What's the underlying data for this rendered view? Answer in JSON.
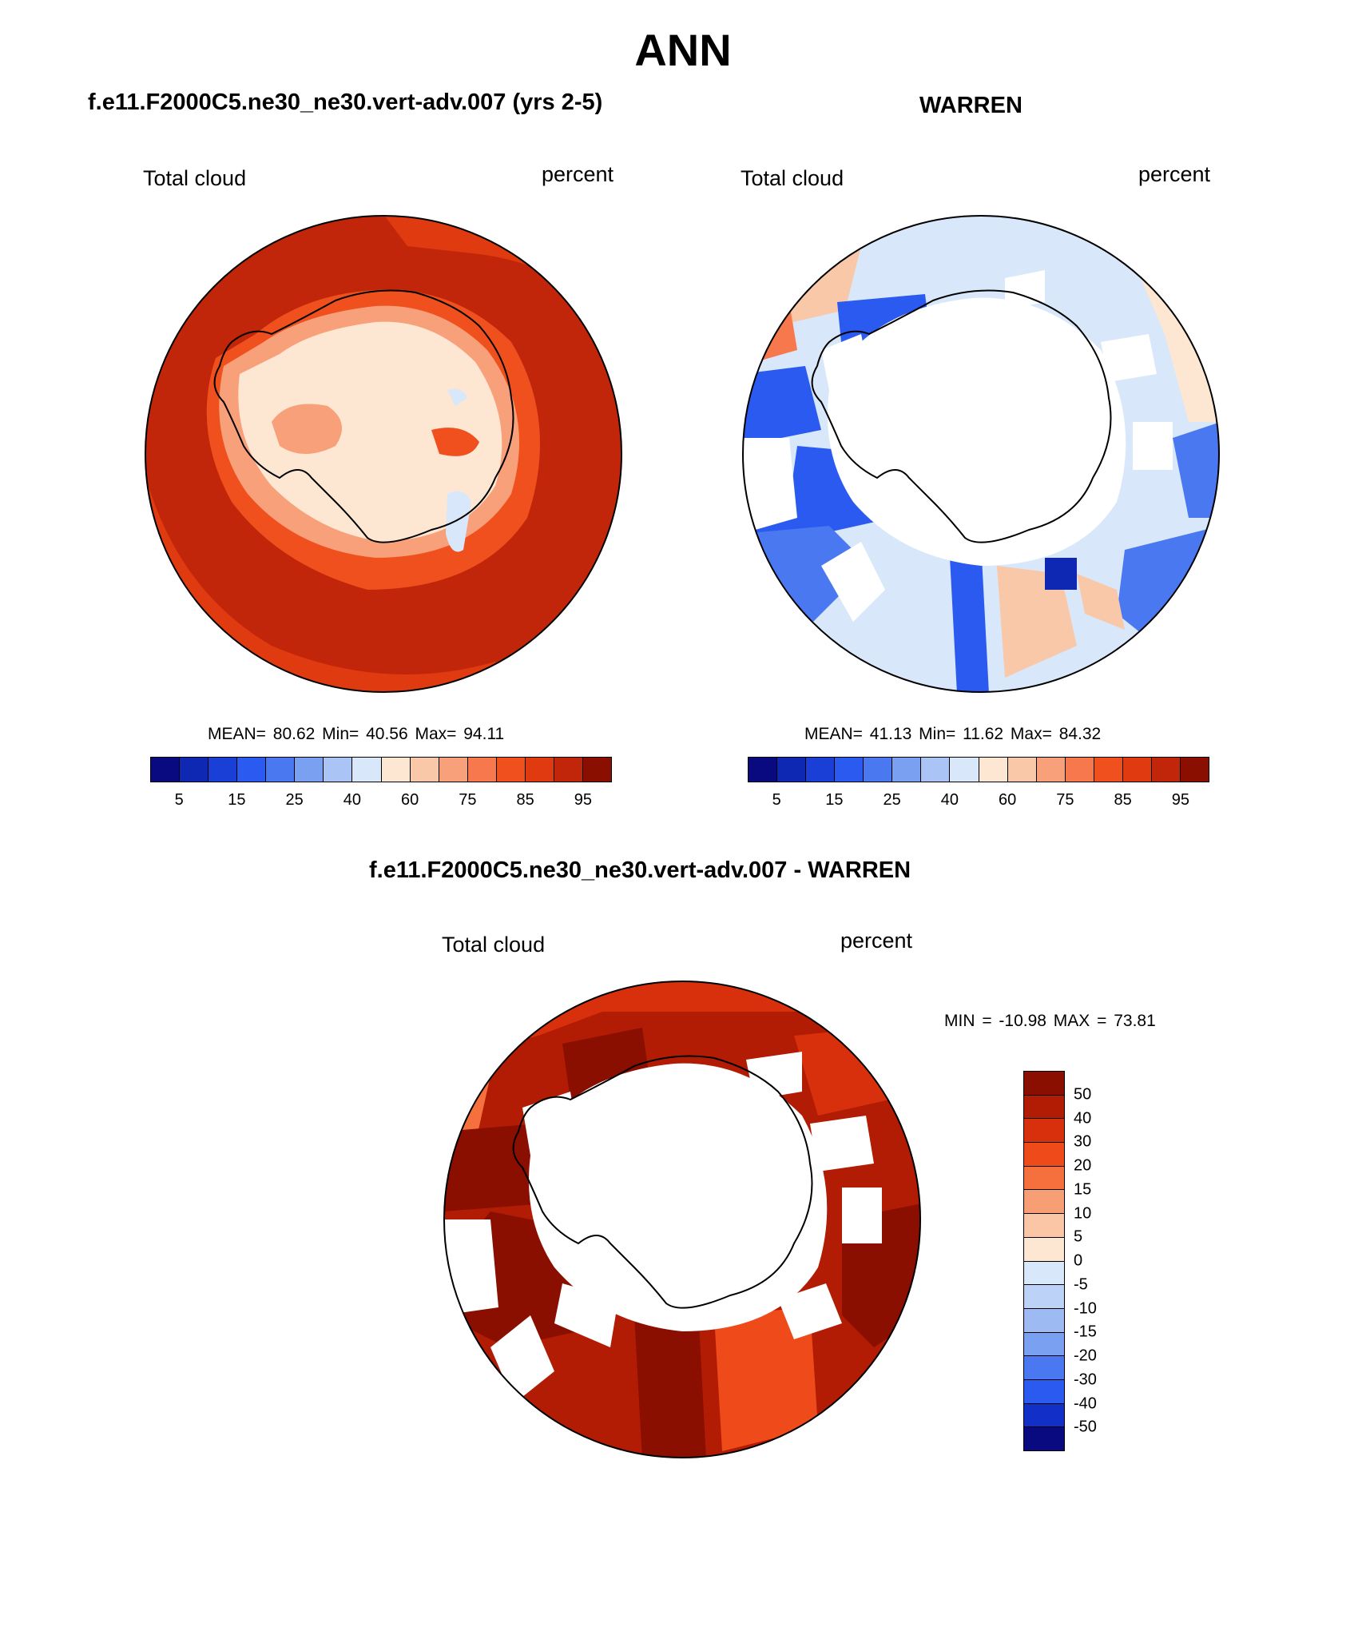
{
  "header": {
    "title": "ANN"
  },
  "panels": [
    {
      "title": "f.e11.F2000C5.ne30_ne30.vert-adv.007 (yrs 2-5)",
      "variable": "Total cloud",
      "units": "percent",
      "stats": "MEAN=  80.62  Min=  40.56  Max=  94.11",
      "colorbar_ticks": [
        "5",
        "15",
        "25",
        "40",
        "60",
        "75",
        "85",
        "95"
      ]
    },
    {
      "title": "WARREN",
      "variable": "Total cloud",
      "units": "percent",
      "stats": "MEAN=  41.13  Min=  11.62  Max=  84.32",
      "colorbar_ticks": [
        "5",
        "15",
        "25",
        "40",
        "60",
        "75",
        "85",
        "95"
      ]
    },
    {
      "title": "f.e11.F2000C5.ne30_ne30.vert-adv.007 - WARREN",
      "variable": "Total cloud",
      "units": "percent",
      "stats": "MIN = -10.98 MAX =  73.81",
      "colorbar_ticks": [
        "50",
        "40",
        "30",
        "20",
        "15",
        "10",
        "5",
        "0",
        "-5",
        "-10",
        "-15",
        "-20",
        "-30",
        "-40",
        "-50"
      ]
    }
  ],
  "colors": {
    "abs_scale": [
      "#0a0a80",
      "#0f28b4",
      "#1a3fd6",
      "#2a5af0",
      "#4a78f0",
      "#7aa0f2",
      "#a9c4f5",
      "#d8e8fa",
      "#fde6d2",
      "#f9c8a8",
      "#f8a07a",
      "#f7784c",
      "#f0501e",
      "#e03a10",
      "#c2260a",
      "#8a0f00"
    ],
    "diff_scale": [
      "#8a0f00",
      "#b21c04",
      "#d8300c",
      "#ee4a1a",
      "#f6703e",
      "#f89e74",
      "#fbc6a6",
      "#fde6d2",
      "#d8e8fa",
      "#bcd2f6",
      "#9dbaf3",
      "#7aa0f2",
      "#4a78f0",
      "#2a5af0",
      "#1230c8",
      "#0a0a80"
    ]
  }
}
